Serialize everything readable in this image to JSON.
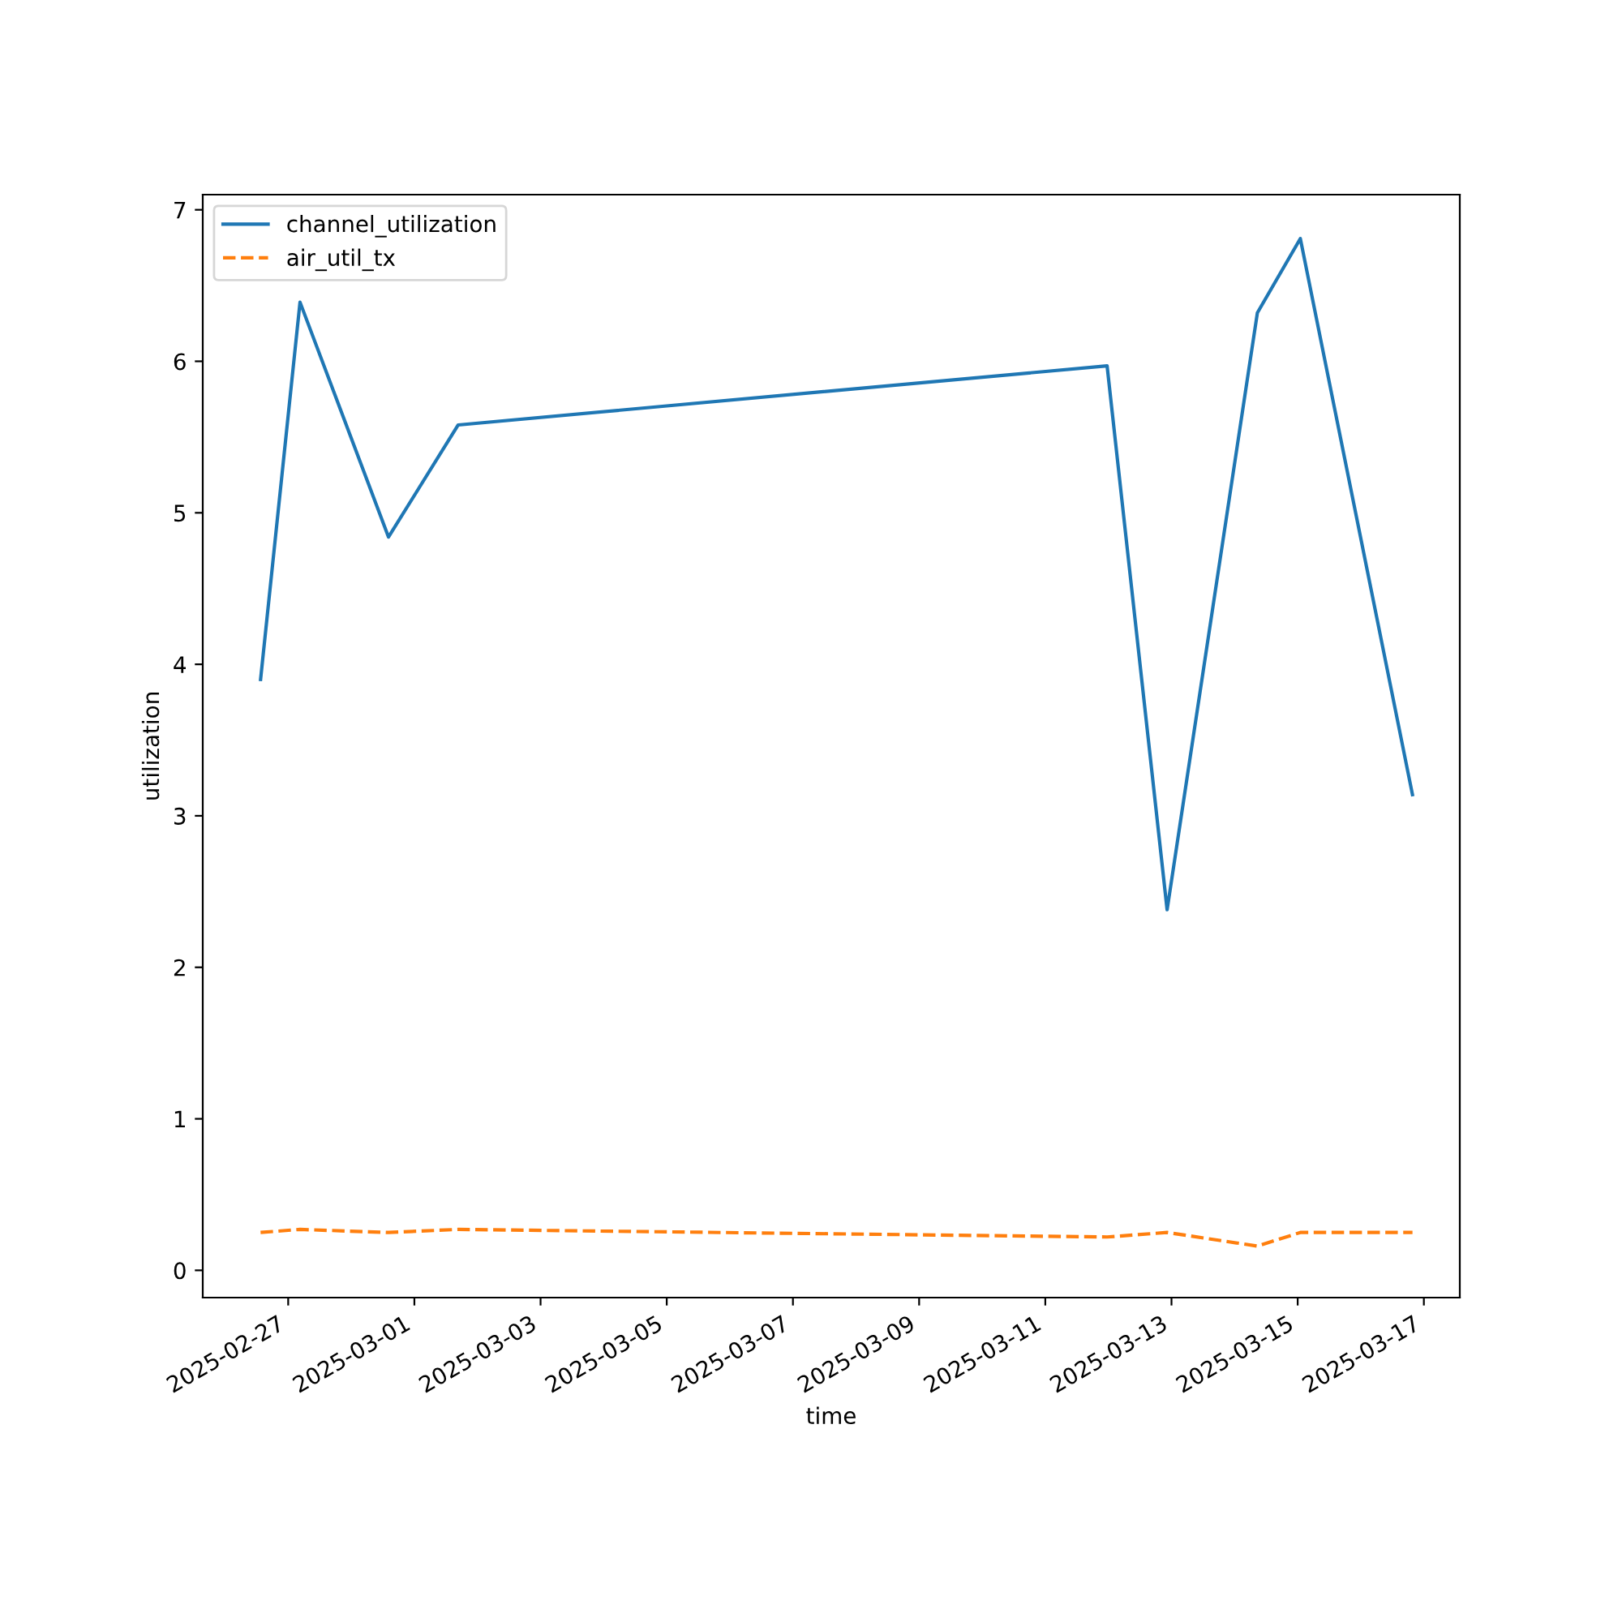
{
  "chart_data": {
    "type": "line",
    "xlabel": "time",
    "ylabel": "utilization",
    "x": [
      "2025-02-26T13:30",
      "2025-02-27T04:30",
      "2025-02-28T14:10",
      "2025-03-01T16:40",
      "2025-03-11T23:30",
      "2025-03-12T22:20",
      "2025-03-14T08:40",
      "2025-03-15T01:00",
      "2025-03-16T19:40"
    ],
    "series": [
      {
        "name": "channel_utilization",
        "color": "#1f77b4",
        "line_style": "solid",
        "values": [
          3.9,
          6.39,
          4.84,
          5.58,
          5.97,
          2.38,
          6.32,
          6.81,
          3.14
        ]
      },
      {
        "name": "air_util_tx",
        "color": "#ff7f0e",
        "line_style": "dashed",
        "values": [
          0.25,
          0.27,
          0.25,
          0.27,
          0.22,
          0.25,
          0.16,
          0.25,
          0.25
        ]
      }
    ],
    "xlim": [
      "2025-02-25T15:30",
      "2025-03-17T13:40"
    ],
    "xticks": [
      "2025-02-27",
      "2025-03-01",
      "2025-03-03",
      "2025-03-05",
      "2025-03-07",
      "2025-03-09",
      "2025-03-11",
      "2025-03-13",
      "2025-03-15",
      "2025-03-17"
    ],
    "ylim": [
      -0.18,
      7.1
    ],
    "yticks": [
      0,
      1,
      2,
      3,
      4,
      5,
      6,
      7
    ],
    "grid": false,
    "legend": "top left",
    "marker": "none"
  }
}
